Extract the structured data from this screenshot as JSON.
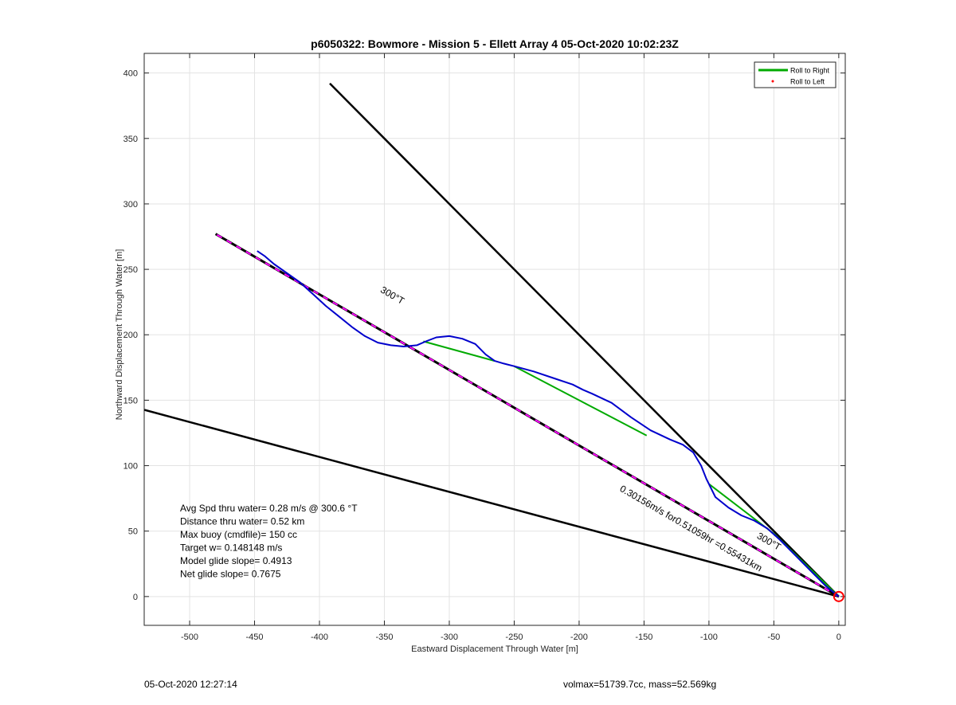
{
  "chart_data": {
    "type": "line",
    "title": "p6050322: Bowmore - Mission 5 - Ellett Array 4 05-Oct-2020 10:02:23Z",
    "xlabel": "Eastward Displacement Through Water [m]",
    "ylabel": "Northward Displacement Through Water [m]",
    "xlim": [
      -535,
      5
    ],
    "ylim": [
      -22,
      415
    ],
    "xticks": [
      -500,
      -450,
      -400,
      -350,
      -300,
      -250,
      -200,
      -150,
      -100,
      -50,
      0
    ],
    "yticks": [
      0,
      50,
      100,
      150,
      200,
      250,
      300,
      350,
      400
    ],
    "grid": true,
    "legend": {
      "placement": "top-right",
      "entries": [
        {
          "label": "Roll to Right",
          "color": "#00aa00",
          "style": "line"
        },
        {
          "label": "Roll to Left",
          "color": "#ff0000",
          "style": "dot"
        }
      ]
    },
    "series": [
      {
        "role": "track",
        "color": "#0000cc",
        "x": [
          0,
          -10,
          -20,
          -30,
          -40,
          -46,
          -55,
          -65,
          -75,
          -85,
          -95,
          -102,
          -106,
          -112,
          -120,
          -130,
          -145,
          -160,
          -175,
          -190,
          -197,
          -205,
          -220,
          -235,
          -250,
          -258,
          -265,
          -272,
          -280,
          -290,
          -300,
          -310,
          -318,
          -325,
          -335,
          -345,
          -355,
          -365,
          -375,
          -385,
          -395,
          -405,
          -415,
          -425,
          -435,
          -442,
          -448
        ],
        "y": [
          0,
          8,
          18,
          28,
          38,
          44,
          52,
          58,
          62,
          68,
          76,
          90,
          100,
          110,
          116,
          120,
          127,
          137,
          148,
          155,
          158,
          162,
          167,
          172,
          176,
          178,
          180,
          185,
          193,
          197,
          199,
          198,
          195,
          192,
          191,
          192,
          194,
          199,
          206,
          214,
          222,
          231,
          240,
          247,
          254,
          260,
          264
        ]
      },
      {
        "role": "roll-to-right",
        "color": "#00aa00",
        "segments": [
          {
            "x": [
              0,
              -50,
              -100
            ],
            "y": [
              0,
              48,
              86
            ]
          },
          {
            "x": [
              -148,
              -200,
              -250
            ],
            "y": [
              123,
              150,
              176
            ]
          },
          {
            "x": [
              -265,
              -320
            ],
            "y": [
              180,
              195
            ]
          }
        ]
      },
      {
        "role": "heading-line",
        "color": "#ff00ff",
        "style": "magenta-black-dashed",
        "x": [
          0,
          -480
        ],
        "y": [
          0,
          277
        ]
      },
      {
        "role": "bounds",
        "color": "#000000",
        "lines": [
          {
            "x": [
              0,
              -392
            ],
            "y": [
              0,
              392
            ]
          },
          {
            "x": [
              0,
              -540
            ],
            "y": [
              0,
              144
            ]
          }
        ]
      },
      {
        "role": "origin-marker",
        "color": "#ff0000",
        "x": [
          0
        ],
        "y": [
          0
        ]
      }
    ],
    "annotations": [
      {
        "text": "300°T",
        "x": -345,
        "y": 228,
        "rotation": 30
      },
      {
        "text": "300°T",
        "x": -55,
        "y": 40,
        "rotation": 30
      },
      {
        "text": "0.30156m/s for0.51059hr =0.55431km",
        "x": -115,
        "y": 50,
        "rotation": 30
      }
    ],
    "stats": [
      "Avg Spd thru water=  0.28 m/s @ 300.6 °T",
      "Distance thru water=  0.52 km",
      "Max buoy (cmdfile)= 150 cc",
      "Target w= 0.148148 m/s",
      "Model glide slope= 0.4913",
      "Net glide slope= 0.7675"
    ]
  },
  "footer": {
    "left": "05-Oct-2020 12:27:14",
    "right": "volmax=51739.7cc, mass=52.569kg"
  }
}
